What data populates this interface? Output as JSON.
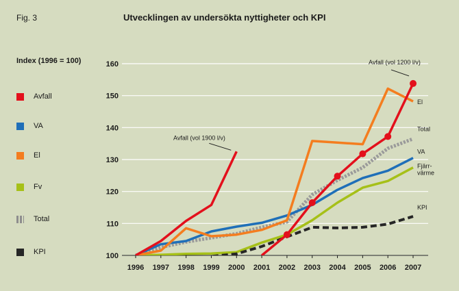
{
  "figure_label": "Fig. 3",
  "chart_data": {
    "type": "line",
    "title": "Utvecklingen av undersökta nyttigheter och KPI",
    "ylabel": "Index (1996 = 100)",
    "xlabel": "",
    "ylim": [
      100,
      160
    ],
    "yticks": [
      100,
      110,
      120,
      130,
      140,
      150,
      160
    ],
    "x": [
      1996,
      1997,
      1998,
      1999,
      2000,
      2001,
      2002,
      2003,
      2004,
      2005,
      2006,
      2007
    ],
    "grid": true,
    "legend_position": "left",
    "legend": [
      {
        "key": "avfall",
        "label": "Avfall",
        "color": "#e3101c"
      },
      {
        "key": "va",
        "label": "VA",
        "color": "#1f6fb8"
      },
      {
        "key": "el",
        "label": "El",
        "color": "#f47d1f"
      },
      {
        "key": "fv",
        "label": "Fv",
        "color": "#a6c018"
      },
      {
        "key": "total",
        "label": "Total",
        "color": "#9a9a9a"
      },
      {
        "key": "kpi",
        "label": "KPI",
        "color": "#262626"
      }
    ],
    "series": [
      {
        "key": "avfall_1900",
        "color": "#e3101c",
        "style": "solid",
        "markers": false,
        "x": [
          1996,
          1997,
          1998,
          1999,
          2000
        ],
        "values": [
          100,
          104.5,
          110.8,
          115.8,
          132.5
        ]
      },
      {
        "key": "avfall_1200",
        "color": "#e3101c",
        "style": "solid",
        "markers": true,
        "x": [
          2001,
          2002,
          2003,
          2004,
          2005,
          2006,
          2007
        ],
        "values": [
          100,
          106.5,
          116.5,
          124.8,
          131.8,
          137.2,
          153.8
        ]
      },
      {
        "key": "va",
        "color": "#1f6fb8",
        "style": "solid",
        "markers": false,
        "x": [
          1996,
          1997,
          1998,
          1999,
          2000,
          2001,
          2002,
          2003,
          2004,
          2005,
          2006,
          2007
        ],
        "values": [
          100,
          103.5,
          104.5,
          107.5,
          109,
          110.2,
          112.5,
          115.8,
          120.5,
          124.2,
          126.5,
          130.5
        ]
      },
      {
        "key": "el",
        "color": "#f47d1f",
        "style": "solid",
        "markers": false,
        "x": [
          1996,
          1997,
          1998,
          1999,
          2000,
          2001,
          2002,
          2003,
          2004,
          2005,
          2006,
          2007
        ],
        "values": [
          100,
          101.5,
          108.5,
          106,
          106.5,
          108,
          111,
          135.8,
          135.3,
          134.8,
          152.2,
          148.2
        ]
      },
      {
        "key": "fv",
        "color": "#a6c018",
        "style": "solid",
        "markers": false,
        "x": [
          1996,
          1997,
          1998,
          1999,
          2000,
          2001,
          2002,
          2003,
          2004,
          2005,
          2006,
          2007
        ],
        "values": [
          100,
          100.2,
          100.5,
          100.6,
          101,
          104,
          106.5,
          111,
          116.5,
          121.2,
          123.3,
          127.5
        ]
      },
      {
        "key": "total",
        "color": "#9a9a9a",
        "style": "dotted",
        "markers": false,
        "x": [
          1996,
          1997,
          1998,
          1999,
          2000,
          2001,
          2002,
          2003,
          2004,
          2005,
          2006,
          2007
        ],
        "values": [
          100,
          102.5,
          104.2,
          105.5,
          106.8,
          108.8,
          110.5,
          119,
          123.5,
          127.5,
          133.5,
          136.5
        ]
      },
      {
        "key": "kpi",
        "color": "#262626",
        "style": "dashed",
        "markers": false,
        "x": [
          1996,
          1997,
          1998,
          1999,
          2000,
          2001,
          2002,
          2003,
          2004,
          2005,
          2006,
          2007
        ],
        "values": [
          99.5,
          99,
          99.5,
          99.7,
          100.5,
          102.8,
          105.8,
          108.8,
          108.6,
          108.8,
          109.8,
          112.2
        ]
      }
    ],
    "annotations": [
      {
        "name": "annotation-avfall-1900",
        "text": "Avfall (vol 1900 l/v)",
        "anchor_x": 2000,
        "anchor_y": 132.5
      },
      {
        "name": "annotation-avfall-1200",
        "text": "Avfall (vol 1200 l/v)",
        "anchor_x": 2007,
        "anchor_y": 153.8
      }
    ],
    "end_labels": [
      {
        "name": "end-label-el",
        "lines": [
          "El"
        ],
        "x": 2007,
        "y": 148.2
      },
      {
        "name": "end-label-total",
        "lines": [
          "Total"
        ],
        "x": 2007,
        "y": 136.5
      },
      {
        "name": "end-label-va",
        "lines": [
          "VA"
        ],
        "x": 2007,
        "y": 130.5
      },
      {
        "name": "end-label-fjarrvarme",
        "lines": [
          "Fjärr-",
          "värme"
        ],
        "x": 2007,
        "y": 127.5
      },
      {
        "name": "end-label-kpi",
        "lines": [
          "KPI"
        ],
        "x": 2007,
        "y": 112.2
      }
    ]
  }
}
